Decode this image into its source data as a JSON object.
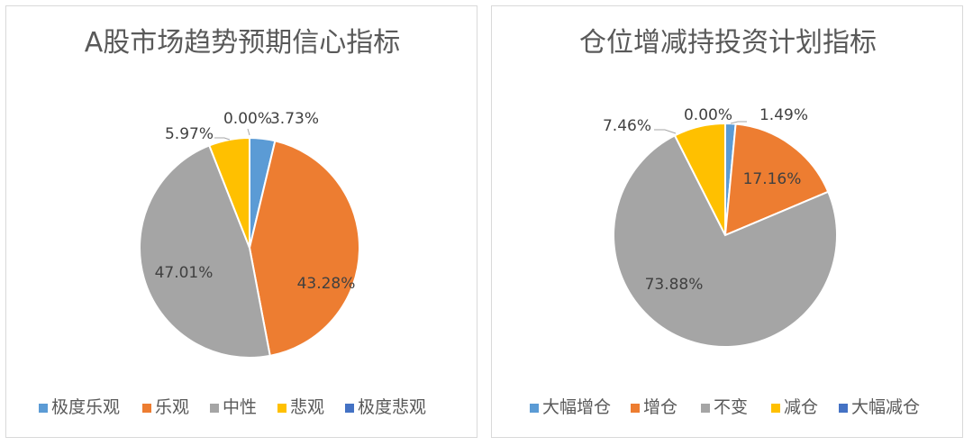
{
  "chart_data": [
    {
      "type": "pie",
      "title": "A股市场趋势预期信心指标",
      "legend_position": "bottom",
      "categories": [
        "极度乐观",
        "乐观",
        "中性",
        "悲观",
        "极度悲观"
      ],
      "values": [
        3.73,
        43.28,
        47.01,
        5.97,
        0.0
      ],
      "value_labels": [
        "3.73%",
        "43.28%",
        "47.01%",
        "5.97%",
        "0.00%"
      ],
      "colors": [
        "#5B9BD5",
        "#ED7D31",
        "#A5A5A5",
        "#FFC000",
        "#4472C4"
      ]
    },
    {
      "type": "pie",
      "title": "仓位增减持投资计划指标",
      "legend_position": "bottom",
      "categories": [
        "大幅增仓",
        "增仓",
        "不变",
        "减仓",
        "大幅减仓"
      ],
      "values": [
        1.49,
        17.16,
        73.88,
        7.46,
        0.0
      ],
      "value_labels": [
        "1.49%",
        "17.16%",
        "73.88%",
        "7.46%",
        "0.00%"
      ],
      "colors": [
        "#5B9BD5",
        "#ED7D31",
        "#A5A5A5",
        "#FFC000",
        "#4472C4"
      ]
    }
  ]
}
